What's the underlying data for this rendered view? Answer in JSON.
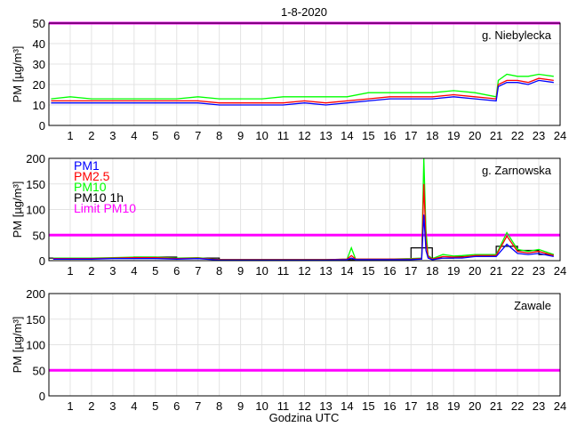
{
  "title": "1-8-2020",
  "xlabel": "Godzina UTC",
  "colors": {
    "PM1": "#0000ff",
    "PM2.5": "#ff0000",
    "PM10": "#00ff00",
    "PM10 1h": "#000000",
    "Limit PM10": "#ff00ff",
    "grid": "#e3e3e3"
  },
  "legend": [
    "PM1",
    "PM2.5",
    "PM10",
    "PM10 1h",
    "Limit PM10"
  ],
  "chart_data": [
    {
      "type": "line",
      "station": "g. Niebylecka",
      "ylabel": "PM [µg/m³]",
      "ylim": [
        0,
        50
      ],
      "yticks": [
        0,
        10,
        20,
        30,
        40,
        50
      ],
      "xlim": [
        0,
        24
      ],
      "xticks": [
        1,
        2,
        3,
        4,
        5,
        6,
        7,
        8,
        9,
        10,
        11,
        12,
        13,
        14,
        15,
        16,
        17,
        18,
        19,
        20,
        21,
        22,
        23,
        24
      ],
      "limit": 50,
      "x": [
        0.1,
        1,
        2,
        3,
        4,
        5,
        6,
        7,
        8,
        9,
        10,
        11,
        12,
        13,
        14,
        15,
        16,
        17,
        18,
        19,
        20,
        21,
        21.1,
        21.5,
        22,
        22.5,
        23,
        23.7
      ],
      "series": [
        {
          "name": "PM1",
          "values": [
            11,
            11,
            11,
            11,
            11,
            11,
            11,
            11,
            10,
            10,
            10,
            10,
            11,
            10,
            11,
            12,
            13,
            13,
            13,
            14,
            13,
            12,
            19,
            21,
            21,
            20,
            22,
            21
          ]
        },
        {
          "name": "PM2.5",
          "values": [
            12,
            12,
            12,
            12,
            12,
            12,
            12,
            12,
            11,
            11,
            11,
            11,
            12,
            11,
            12,
            13,
            14,
            14,
            14,
            15,
            14,
            13,
            20,
            22,
            22,
            21,
            23,
            22
          ]
        },
        {
          "name": "PM10",
          "values": [
            13,
            14,
            13,
            13,
            13,
            13,
            13,
            14,
            13,
            13,
            13,
            14,
            14,
            14,
            14,
            16,
            16,
            16,
            16,
            17,
            16,
            14,
            22,
            25,
            24,
            24,
            25,
            24
          ]
        }
      ],
      "step_series": null
    },
    {
      "type": "line",
      "station": "g. Zarnowska",
      "ylabel": "PM [µg/m³]",
      "ylim": [
        0,
        200
      ],
      "yticks": [
        0,
        50,
        100,
        150,
        200
      ],
      "xlim": [
        0,
        24
      ],
      "xticks": [
        1,
        2,
        3,
        4,
        5,
        6,
        7,
        8,
        9,
        10,
        11,
        12,
        13,
        14,
        15,
        16,
        17,
        18,
        19,
        20,
        21,
        22,
        23,
        24
      ],
      "limit": 50,
      "x": [
        0.2,
        1,
        2,
        3,
        4,
        5,
        6,
        7,
        8,
        9,
        10,
        11,
        12,
        13,
        14,
        14.2,
        14.4,
        15,
        16,
        17,
        17.5,
        17.6,
        17.7,
        17.8,
        18,
        18.5,
        19,
        19.4,
        20,
        21,
        21.5,
        22,
        22.5,
        23,
        23.7
      ],
      "series": [
        {
          "name": "PM1",
          "values": [
            3,
            3,
            3,
            4,
            4,
            4,
            3,
            4,
            1,
            1,
            1,
            1,
            1,
            1,
            2,
            5,
            2,
            2,
            2,
            2,
            3,
            90,
            20,
            5,
            2,
            5,
            5,
            5,
            8,
            8,
            32,
            14,
            12,
            14,
            8
          ]
        },
        {
          "name": "PM2.5",
          "values": [
            4,
            4,
            4,
            5,
            6,
            6,
            4,
            5,
            2,
            2,
            2,
            2,
            2,
            2,
            3,
            10,
            3,
            3,
            3,
            3,
            4,
            150,
            40,
            8,
            3,
            8,
            7,
            7,
            10,
            10,
            48,
            18,
            15,
            18,
            10
          ]
        },
        {
          "name": "PM10",
          "values": [
            5,
            5,
            5,
            6,
            7,
            7,
            5,
            6,
            2,
            2,
            2,
            2,
            2,
            2,
            3,
            25,
            3,
            3,
            3,
            4,
            5,
            200,
            60,
            10,
            4,
            12,
            9,
            10,
            12,
            12,
            55,
            22,
            18,
            22,
            12
          ]
        }
      ],
      "step_series": {
        "name": "PM10 1h",
        "hours": [
          0,
          1,
          2,
          3,
          4,
          5,
          6,
          7,
          8,
          9,
          10,
          11,
          12,
          13,
          14,
          15,
          16,
          17,
          18,
          19,
          20,
          21,
          22,
          23
        ],
        "values": [
          5,
          5,
          5,
          6,
          7,
          7,
          4,
          5,
          2,
          2,
          2,
          2,
          2,
          2,
          2,
          2,
          3,
          25,
          5,
          8,
          10,
          28,
          20,
          12
        ]
      }
    },
    {
      "type": "line",
      "station": "Zawale",
      "ylabel": "PM [µg/m³]",
      "ylim": [
        0,
        200
      ],
      "yticks": [
        0,
        50,
        100,
        150,
        200
      ],
      "xlim": [
        0,
        24
      ],
      "xticks": [
        1,
        2,
        3,
        4,
        5,
        6,
        7,
        8,
        9,
        10,
        11,
        12,
        13,
        14,
        15,
        16,
        17,
        18,
        19,
        20,
        21,
        22,
        23,
        24
      ],
      "limit": 50,
      "x": [],
      "series": [],
      "step_series": null
    }
  ]
}
